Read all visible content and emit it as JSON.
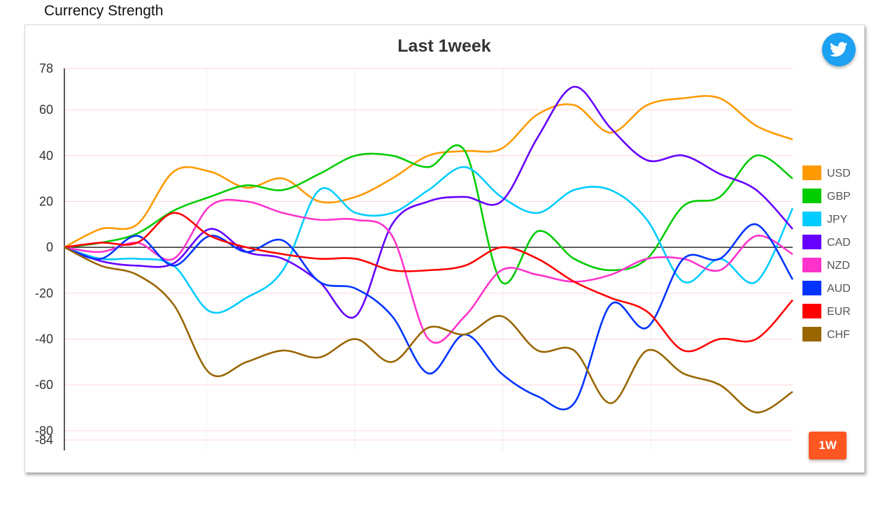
{
  "page": {
    "title": "Currency Strength"
  },
  "buttons": {
    "twitter_icon": "twitter-icon",
    "range_label": "1W"
  },
  "colors": {
    "twitter": "#1da1f2",
    "range_button": "#ff5722",
    "grid": "#ffd6d6"
  },
  "chart_data": {
    "type": "line",
    "title": "Last 1week",
    "xlabel": "",
    "ylabel": "",
    "ylim": [
      -84,
      78
    ],
    "yticks": [
      78,
      60,
      40,
      20,
      0,
      -20,
      -40,
      -60,
      -80,
      -84
    ],
    "grid": true,
    "legend_position": "right",
    "x": [
      0,
      5,
      10,
      15,
      20,
      25,
      30,
      35,
      40,
      45,
      50,
      55,
      60,
      65,
      70,
      75,
      80,
      85,
      90,
      95,
      100
    ],
    "series": [
      {
        "name": "USD",
        "color": "#ff9900",
        "values": [
          0,
          8,
          10,
          33,
          33,
          26,
          30,
          20,
          22,
          30,
          40,
          42,
          43,
          58,
          62,
          50,
          62,
          65,
          65,
          53,
          47
        ]
      },
      {
        "name": "GBP",
        "color": "#00cc00",
        "values": [
          0,
          2,
          6,
          16,
          22,
          27,
          25,
          32,
          40,
          40,
          35,
          42,
          -15,
          7,
          -5,
          -10,
          -5,
          18,
          22,
          40,
          30
        ]
      },
      {
        "name": "JPY",
        "color": "#00ccff",
        "values": [
          0,
          -5,
          -5,
          -8,
          -28,
          -22,
          -10,
          25,
          15,
          15,
          25,
          35,
          22,
          15,
          25,
          25,
          12,
          -15,
          -5,
          -15,
          17
        ]
      },
      {
        "name": "CAD",
        "color": "#6600ff",
        "values": [
          0,
          -6,
          -8,
          -7,
          8,
          -2,
          -5,
          -15,
          -30,
          10,
          20,
          22,
          20,
          48,
          70,
          52,
          38,
          40,
          32,
          25,
          8
        ]
      },
      {
        "name": "NZD",
        "color": "#ff33cc",
        "values": [
          0,
          -2,
          2,
          -5,
          18,
          20,
          15,
          12,
          12,
          5,
          -40,
          -30,
          -10,
          -12,
          -15,
          -12,
          -5,
          -5,
          -10,
          5,
          -3
        ]
      },
      {
        "name": "AUD",
        "color": "#0033ff",
        "values": [
          0,
          -5,
          5,
          -8,
          5,
          -2,
          3,
          -15,
          -18,
          -30,
          -55,
          -38,
          -55,
          -65,
          -68,
          -25,
          -35,
          -5,
          -5,
          10,
          -14
        ]
      },
      {
        "name": "EUR",
        "color": "#ff0000",
        "values": [
          0,
          2,
          2,
          15,
          5,
          0,
          -3,
          -5,
          -5,
          -10,
          -10,
          -8,
          0,
          -5,
          -15,
          -22,
          -28,
          -45,
          -40,
          -40,
          -23
        ]
      },
      {
        "name": "CHF",
        "color": "#996600",
        "values": [
          0,
          -8,
          -12,
          -25,
          -55,
          -50,
          -45,
          -48,
          -40,
          -50,
          -35,
          -38,
          -30,
          -45,
          -45,
          -68,
          -45,
          -55,
          -60,
          -72,
          -63
        ]
      }
    ]
  }
}
